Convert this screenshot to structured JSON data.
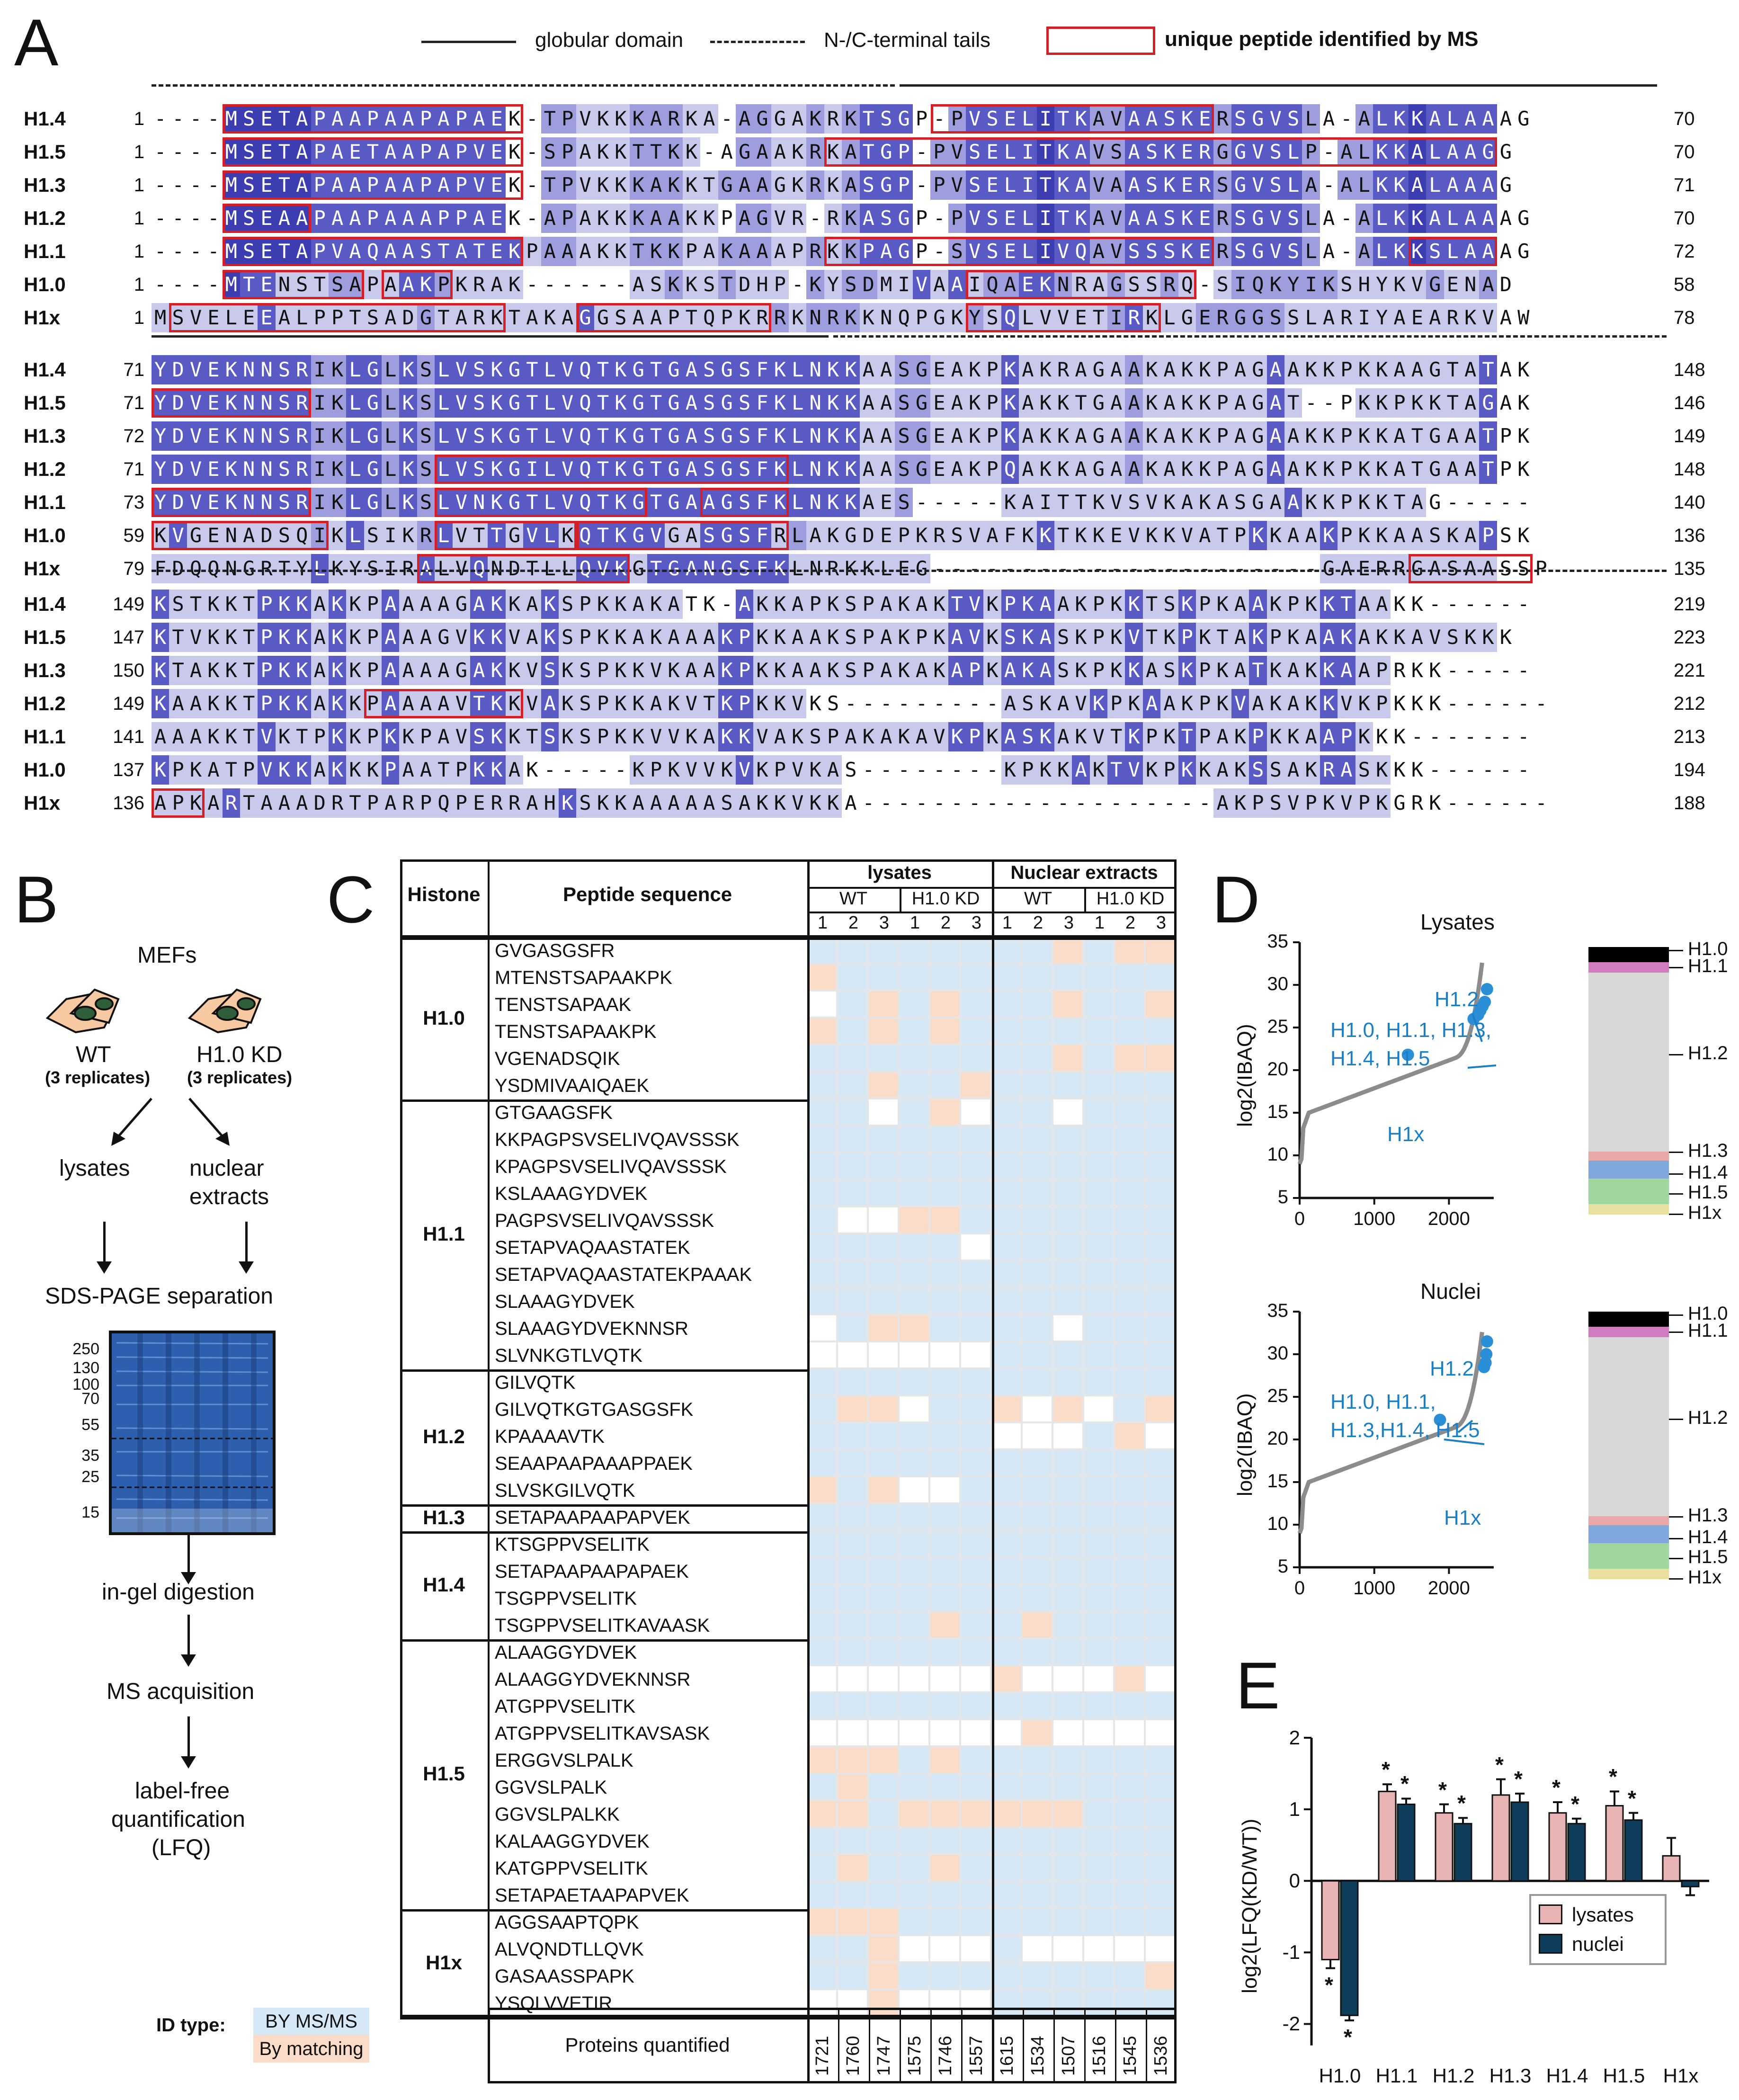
{
  "panels": {
    "a": "A",
    "b": "B",
    "c": "C",
    "d": "D",
    "e": "E"
  },
  "legend": {
    "globular": "globular domain",
    "tails": "N-/C-terminal tails",
    "unique": "unique peptide identified by MS"
  },
  "alignment": {
    "blocks": [
      {
        "rows": [
          {
            "name": "H1.4",
            "start": "1",
            "end": "70",
            "seq": "----MSETAPAAPAAPAPAEK-TPVKKKARKA-AGGAKRKTSGP-PVSELITKAVAASKERSGVSLA-ALKKALAAAG",
            "shade": "0000444443333333333301221112221102211212333022333343322333332333320223343333"
          },
          {
            "name": "H1.5",
            "start": "1",
            "end": "70",
            "seq": "----MSETAPAETAAPAPVEK-SPAKKTTKK-AGAAKRKATGP-PVSELITKAVSASKERGGVSLP-ALKKALAAGG",
            "shade": "0000444443333333333301221112221102211212333022333343322333332333320223343333"
          },
          {
            "name": "H1.3",
            "start": "1",
            "end": "71",
            "seq": "----MSETAPAAPAAPAPVEK-TPVKKKAKKTGAAGKRKASGP-PVSELITKAVAASKERSGVSLA-ALKKALAAAG",
            "shade": "0000444443333333333301221112221122211212333022333343322333332333320223343333"
          },
          {
            "name": "H1.2",
            "start": "1",
            "end": "70",
            "seq": "----MSEAAPAAPAAAPPAEK-APAKKKAAKKPAGVR-RKASGP-PVSELITKAVAASKERSGVSLA-ALKKALAAAG",
            "shade": "0000444443333333333301221112221102211212333022333343322333332333320223343333"
          },
          {
            "name": "H1.1",
            "start": "1",
            "end": "72",
            "seq": "----MSETAPVAQAASTATEKPAAAKKTKKPAKAAAPRKKPAGP-SVSELIVQAVSSSKERSGVSLA-ALKKSLAAAG",
            "shade": "0000444443333333333331221112221122211212333022333343322333332333320223343333"
          },
          {
            "name": "H1.0",
            "start": "1",
            "end": "58",
            "seq": "----MTENSTSAPAAKPKRAK------ASKKSTDHP-KYSDMIVAAIQAEKNRAGSSRQ-SIQKYIKSHYKVGENAD",
            "shade": "0000433111221133211110000001121121110212211313122332112112101222222111112112"
          },
          {
            "name": "H1x",
            "start": "1",
            "end": "78",
            "seq": "MSVELEEALPPTSADGTARKTAKAGGSAAPTQPKRRKNRKKNQPGKYSQLVVETIRKLGERGGSSLARIYAEARKVAW",
            "shade": "1111113111111112111111113111111111121222111111213111112311122222111111111111"
          }
        ]
      },
      {
        "rows": [
          {
            "name": "H1.4",
            "start": "71",
            "end": "148",
            "seq": "YDVEKNNSRIKLGLKSLVSKGTLVQTKGTGASGSFKLNKKAASGEAKPKAKRAGAAKAKKPAGAAKKPKKAAGTATAK",
            "shade": "3333333332233232333333333333333333333333112211113111111211111113111111111113"
          },
          {
            "name": "H1.5",
            "start": "71",
            "end": "146",
            "seq": "YDVEKNNSRIKLGLKSLVSKGTLVQTKGTGASGSFKLNKKAASGEAKPKAKKTGAAKAKKPAGAT--PKKPKKTAGAK",
            "shade": "3333333332233232333333333333333333333333112211113111111211111113110011111113"
          },
          {
            "name": "H1.3",
            "start": "72",
            "end": "149",
            "seq": "YDVEKNNSRIKLGLKSLVSKGTLVQTKGTGASGSFKLNKKAASGEAKPKAKKAGAAKAKKPAGAAKKPKKATGAATPK",
            "shade": "3333333332233232333333333333333333333333112211113111111211111113111111111113"
          },
          {
            "name": "H1.2",
            "start": "71",
            "end": "148",
            "seq": "YDVEKNNSRIKLGLKSLVSKGILVQTKGTGASGSFKLNKKAASGEAKPQAKKAGAAKAKKPAGAAKKPKKATGAATPK",
            "shade": "3333333332233232333333333333333333333333112211113111111211111113111111111113"
          },
          {
            "name": "H1.1",
            "start": "73",
            "end": "140",
            "seq": "YDVEKNNSRIKLGLKSLVNKGTLVQTKGTGAAGSFKLNKKAES-----KAITTKVSVKAKASGAAKKPKKTAG-----",
            "shade": "3333333332233232333333333333333333333333112000001111111111111111311111110000"
          },
          {
            "name": "H1.0",
            "start": "59",
            "end": "136",
            "seq": "KVGENADSQIKLSIKRLVTTGVLKQTKGVGASGSFRLAKGDEPKRSVAFKKTKKEVKKVATPKKAAKPKKAASKAPSK",
            "shade": "1311111112131112311313313333311333312111111111111131111111111131113111111113"
          },
          {
            "name": "H1x",
            "start": "79",
            "end": "135",
            "seq": "FDQQNGRTYLKYSIRALVQNDTLLQVKGTGANGSFKLNRKKLEG----------------------GAERRGASAASSP",
            "shade": "1111111113111113113111113331333333331111111100000000000000000000001111111111"
          }
        ]
      },
      {
        "rows": [
          {
            "name": "H1.4",
            "start": "149",
            "end": "219",
            "seq": "KSTKKTPKKAKKPAAAAGAKKAKSPKKAKATK-AKKAPKSPAKAKTVKPKAAKPKKTSKPKAAKPKKTAAKK------",
            "shade": "3111113331311311113311311111110033111111111113313331111311311131113311000000"
          },
          {
            "name": "H1.5",
            "start": "147",
            "end": "223",
            "seq": "KTVKKTPKKAKKPAAAGVKKVAKSPKKAKAAAKPKKAAKSPAKPKAVKSKASKPKVTKPKTAKPKAAKAKKAVSKKK",
            "shade": "3111113331311311113311311111111133111111111113313331111311311131113311111111"
          },
          {
            "name": "H1.3",
            "start": "150",
            "end": "221",
            "seq": "KTAKKTPKKAKKPAAAAGAKKVSKSPKKVKAAKPKKAAKSPAKAKAPKAKASKPKKASKPKATKAKKAAPRKK-----",
            "shade": "3111113331311311113311311111111133111111111113313331111311311131113311000000"
          },
          {
            "name": "H1.2",
            "start": "149",
            "end": "212",
            "seq": "KAAKKTPKKAKKPAAAAVTKKVAKSPKKAKVTKPKKVKS---------ASKAVKPKAAKPKVAKAKKVKPKKK------",
            "shade": "3111113331311311113311311111111133111000000000111111131131111311113111000000"
          },
          {
            "name": "H1.1",
            "start": "141",
            "end": "213",
            "seq": "AAAKKTVKTPKKPKKPAVSKKTSKSPKKVVKAKKVAKSPAKAKAVKPKASKAKVTKPKTPAKPKKAAPKKK-------",
            "shade": "1111113111311311113311311111111133111111111113313331111311311131113310000000"
          },
          {
            "name": "H1.0",
            "start": "137",
            "end": "194",
            "seq": "KPKATPVKKAKKKPAATPKKAK-----KPKVVKVKPVKAS--------KPKKAKTVKPKKAKSSAKRASKKK------",
            "shade": "3111113331311311113310000031111113111110000000001111313311311131113311000000"
          },
          {
            "name": "H1x",
            "start": "136",
            "end": "188",
            "seq": "APKARTAAADRTPARPQPERRAHKSKKAAAAASAKKVKKA--------------------AKPSVPKVPKGRK------",
            "shade": "1111311111111111111111131111111111111110000000000000000000011111111111000000"
          }
        ]
      }
    ]
  },
  "panel_b": {
    "mefs": "MEFs",
    "wt": "WT",
    "wt_rep": "(3 replicates)",
    "kd": "H1.0 KD",
    "kd_rep": "(3 replicates)",
    "lysates": "lysates",
    "nuclear": "nuclear",
    "extracts": "extracts",
    "sds": "SDS-PAGE separation",
    "markers": [
      "250",
      "130",
      "100",
      "70",
      "55",
      "35",
      "25",
      "15"
    ],
    "digestion": "in-gel digestion",
    "ms": "MS acquisition",
    "lfq1": "label-free",
    "lfq2": "quantification",
    "lfq3": "(LFQ)",
    "idtype": "ID type:",
    "msms": "BY MS/MS",
    "matching": "By matching"
  },
  "panel_c": {
    "h_histone": "Histone",
    "h_peptide": "Peptide sequence",
    "h_lysates": "lysates",
    "h_nuclear": "Nuclear extracts",
    "h_wt": "WT",
    "h_kd": "H1.0 KD",
    "reps": [
      "1",
      "2",
      "3"
    ],
    "groups": [
      {
        "name": "H1.0",
        "peptides": [
          {
            "seq": "GVGASGSFR",
            "c": "bbbbbbbbsbss"
          },
          {
            "seq": "MTENSTSAPAAKPK",
            "c": "sbbbbbbbbbbb"
          },
          {
            "seq": "TENSTSAPAAK",
            "c": "wbsbsbbbsbbs"
          },
          {
            "seq": "TENSTSAPAAKPK",
            "c": "sbsbsbbbbbbb"
          },
          {
            "seq": "VGENADSQIK",
            "c": "bbbbbbbbsbss"
          },
          {
            "seq": "YSDMIVAAIQAEK",
            "c": "bbsbbsbbbbbb"
          }
        ]
      },
      {
        "name": "H1.1",
        "peptides": [
          {
            "seq": "GTGAAGSFK",
            "c": "bbwbswbbwbbb"
          },
          {
            "seq": "KKPAGPSVSELIVQAVSSSK",
            "c": "bbbbbbbbbbbb"
          },
          {
            "seq": "KPAGPSVSELIVQAVSSSK",
            "c": "bbbbbbbbbbbb"
          },
          {
            "seq": "KSLAAAGYDVEK",
            "c": "bbbbbbbbbbbb"
          },
          {
            "seq": "PAGPSVSELIVQAVSSSK",
            "c": "bwwssbbbbbbb"
          },
          {
            "seq": "SETAPVAQAASTATEK",
            "c": "bbbbbwbbbbbb"
          },
          {
            "seq": "SETAPVAQAASTATEKPAAAK",
            "c": "bbbbbbbbbbbb"
          },
          {
            "seq": "SLAAAGYDVEK",
            "c": "bbbbbbbbbbbb"
          },
          {
            "seq": "SLAAAGYDVEKNNSR",
            "c": "wbssbbbbwbbb"
          },
          {
            "seq": "SLVNKGTLVQTK",
            "c": "wwwwwwbbbbbb"
          }
        ]
      },
      {
        "name": "H1.2",
        "peptides": [
          {
            "seq": "GILVQTK",
            "c": "bbbbbbbbbbbb"
          },
          {
            "seq": "GILVQTKGTGASGSFK",
            "c": "bsswbbswswbs"
          },
          {
            "seq": "KPAAAAVTK",
            "c": "bbbbbbwwwbsw"
          },
          {
            "seq": "SEAAPAAPAAAPPAEK",
            "c": "bbbbbbbbbbbb"
          },
          {
            "seq": "SLVSKGILVQTK",
            "c": "sbswwbbbbbbb"
          }
        ]
      },
      {
        "name": "H1.3",
        "peptides": [
          {
            "seq": "SETAPAAPAAPAPVEK",
            "c": "bbbbbbbbbbbb"
          }
        ]
      },
      {
        "name": "H1.4",
        "peptides": [
          {
            "seq": "KTSGPPVSELITK",
            "c": "bbbbbbbbbbbb"
          },
          {
            "seq": "SETAPAAPAAPAPAEK",
            "c": "bbbbbbbbbbbb"
          },
          {
            "seq": "TSGPPVSELITK",
            "c": "bbbbbbbbbbbb"
          },
          {
            "seq": "TSGPPVSELITKAVAASK",
            "c": "bbbbsbbsbbbb"
          }
        ]
      },
      {
        "name": "H1.5",
        "peptides": [
          {
            "seq": "ALAAGGYDVEK",
            "c": "bbbbbbbbbbbb"
          },
          {
            "seq": "ALAAGGYDVEKNNSR",
            "c": "wwwwwwswwwsw"
          },
          {
            "seq": "ATGPPVSELITK",
            "c": "bbbbbbbbbbbb"
          },
          {
            "seq": "ATGPPVSELITKAVSASK",
            "c": "wwwwwwwswwww"
          },
          {
            "seq": "ERGGVSLPALK",
            "c": "sssbsbbbbbbb"
          },
          {
            "seq": "GGVSLPALK",
            "c": "bsbbbbbbbbbb"
          },
          {
            "seq": "GGVSLPALKK",
            "c": "ssbssssssbbb"
          },
          {
            "seq": "KALAAGGYDVEK",
            "c": "bbbbbbbbbbbb"
          },
          {
            "seq": "KATGPPVSELITK",
            "c": "bsbbsbbbbbbb"
          },
          {
            "seq": "SETAPAETAAPAPVEK",
            "c": "bbbbbbbbbbbb"
          }
        ]
      },
      {
        "name": "H1x",
        "peptides": [
          {
            "seq": "AGGSAAPTQPK",
            "c": "sssbbbbbbbbb"
          },
          {
            "seq": "ALVQNDTLLQVK",
            "c": "bbswwwbwwwww"
          },
          {
            "seq": "GASAASSPAPK",
            "c": "bbsbbbbbbbbs"
          },
          {
            "seq": "YSQLVVETIR",
            "c": "wwswwwbbbbbb"
          }
        ]
      }
    ],
    "proteins_label": "Proteins quantified",
    "proteins": [
      "1721",
      "1760",
      "1747",
      "1575",
      "1746",
      "1557",
      "1615",
      "1534",
      "1507",
      "1516",
      "1545",
      "1536"
    ]
  },
  "panel_d": {
    "lysates_title": "Lysates",
    "nuclei_title": "Nuclei",
    "ylabel": "log2(IBAQ)",
    "yticks": [
      "35",
      "30",
      "25",
      "20",
      "15",
      "10",
      "5"
    ],
    "xticks": [
      "0",
      "1000",
      "2000"
    ],
    "lys_h12": "H1.2",
    "lys_group1": "H1.0, H1.1, H1.3,",
    "lys_group2": "H1.4, H1.5",
    "lys_h1x": "H1x",
    "nuc_h12": "H1.2",
    "nuc_group1": "H1.0, H1.1,",
    "nuc_group2": "H1.3,H1.4, H1.5",
    "nuc_h1x": "H1x",
    "bar_labels": [
      "H1.0",
      "H1.1",
      "H1.2",
      "H1.3",
      "H1.4",
      "H1.5",
      "H1x"
    ],
    "colors": {
      "h10": "#000000",
      "h11": "#d17cbf",
      "h12": "#d8d8d8",
      "h13": "#e9a9a9",
      "h14": "#7fa9dd",
      "h15": "#9fd89f",
      "h1x": "#e8e0a0"
    }
  },
  "chart_data": {
    "type": "bar",
    "categories": [
      "H1.0",
      "H1.1",
      "H1.2",
      "H1.3",
      "H1.4",
      "H1.5",
      "H1x"
    ],
    "series": [
      {
        "name": "lysates",
        "values": [
          -1.1,
          1.25,
          0.95,
          1.2,
          0.95,
          1.05,
          0.35
        ],
        "errors": [
          0.12,
          0.1,
          0.12,
          0.22,
          0.15,
          0.2,
          0.25
        ],
        "color": "#e8b3b3"
      },
      {
        "name": "nuclei",
        "values": [
          -1.88,
          1.07,
          0.8,
          1.1,
          0.8,
          0.85,
          -0.08
        ],
        "errors": [
          0.07,
          0.08,
          0.08,
          0.12,
          0.07,
          0.1,
          0.12
        ],
        "color": "#0f3d5c"
      }
    ],
    "ylabel": "log2(LFQ(KD/WT))",
    "ylim": [
      -2.5,
      2
    ],
    "yticks": [
      "2",
      "1",
      "0",
      "-1",
      "-2"
    ],
    "stars": "*",
    "legend": [
      "lysates",
      "nuclei"
    ]
  }
}
